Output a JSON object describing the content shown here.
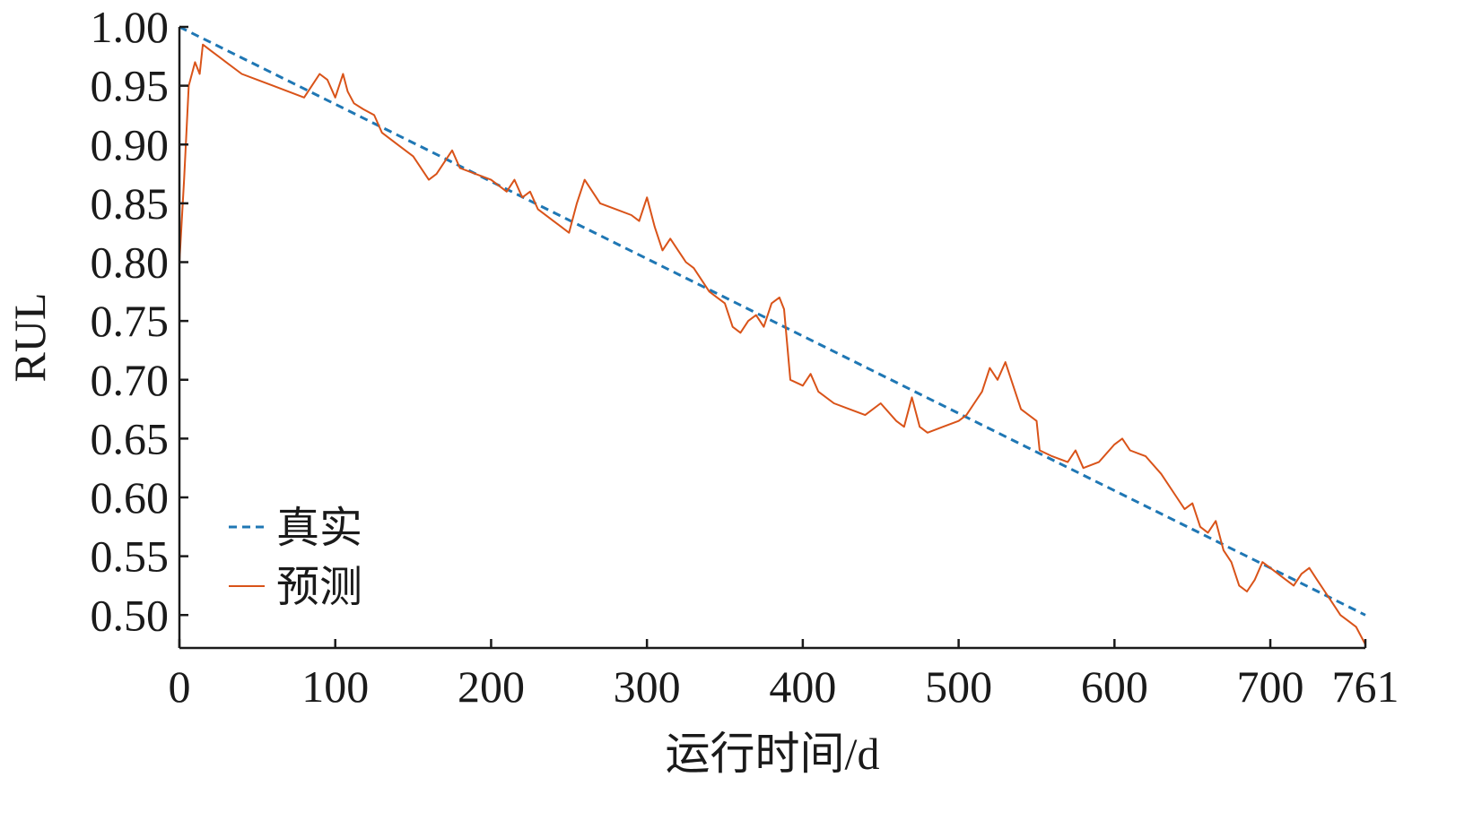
{
  "chart_data": {
    "type": "line",
    "xlabel": "运行时间/d",
    "ylabel": "RUL",
    "xlim": [
      0,
      761
    ],
    "ylim": [
      0.472,
      1.0
    ],
    "xticks": [
      0,
      100,
      200,
      300,
      400,
      500,
      600,
      700,
      761
    ],
    "xtick_labels": [
      "0",
      "100",
      "200",
      "300",
      "400",
      "500",
      "600",
      "700",
      "761"
    ],
    "yticks": [
      0.5,
      0.55,
      0.6,
      0.65,
      0.7,
      0.75,
      0.8,
      0.85,
      0.9,
      0.95,
      1.0
    ],
    "ytick_labels": [
      "0.50",
      "0.55",
      "0.60",
      "0.65",
      "0.70",
      "0.75",
      "0.80",
      "0.85",
      "0.90",
      "0.95",
      "1.00"
    ],
    "grid": false,
    "legend": {
      "position": "lower-left"
    },
    "series": [
      {
        "name": "真实",
        "style": "dashed",
        "color": "#1f77b4",
        "x": [
          0,
          761
        ],
        "y": [
          1.0,
          0.5
        ]
      },
      {
        "name": "预测",
        "style": "solid",
        "color": "#d95319",
        "x": [
          0,
          3,
          6,
          10,
          13,
          15,
          20,
          25,
          30,
          40,
          50,
          60,
          70,
          80,
          85,
          90,
          95,
          100,
          105,
          108,
          112,
          118,
          125,
          130,
          140,
          150,
          160,
          165,
          170,
          175,
          180,
          190,
          200,
          205,
          210,
          215,
          220,
          225,
          230,
          240,
          245,
          250,
          255,
          260,
          265,
          270,
          280,
          290,
          295,
          300,
          305,
          310,
          315,
          320,
          325,
          330,
          340,
          345,
          350,
          355,
          360,
          365,
          370,
          375,
          380,
          385,
          388,
          392,
          400,
          405,
          410,
          420,
          430,
          440,
          450,
          460,
          465,
          470,
          475,
          480,
          490,
          500,
          505,
          510,
          515,
          520,
          525,
          530,
          535,
          540,
          550,
          552,
          560,
          570,
          575,
          580,
          590,
          600,
          605,
          610,
          620,
          630,
          640,
          645,
          650,
          655,
          660,
          665,
          670,
          675,
          680,
          685,
          690,
          695,
          700,
          710,
          715,
          720,
          725,
          730,
          735,
          740,
          745,
          750,
          755,
          761
        ],
        "y": [
          0.8,
          0.87,
          0.95,
          0.97,
          0.96,
          0.985,
          0.98,
          0.975,
          0.97,
          0.96,
          0.955,
          0.95,
          0.945,
          0.94,
          0.95,
          0.96,
          0.955,
          0.94,
          0.96,
          0.945,
          0.935,
          0.93,
          0.925,
          0.91,
          0.9,
          0.89,
          0.87,
          0.875,
          0.885,
          0.895,
          0.88,
          0.875,
          0.87,
          0.865,
          0.86,
          0.87,
          0.855,
          0.86,
          0.845,
          0.835,
          0.83,
          0.825,
          0.85,
          0.87,
          0.86,
          0.85,
          0.845,
          0.84,
          0.835,
          0.855,
          0.83,
          0.81,
          0.82,
          0.81,
          0.8,
          0.795,
          0.775,
          0.77,
          0.765,
          0.745,
          0.74,
          0.75,
          0.755,
          0.745,
          0.765,
          0.77,
          0.76,
          0.7,
          0.695,
          0.705,
          0.69,
          0.68,
          0.675,
          0.67,
          0.68,
          0.665,
          0.66,
          0.685,
          0.66,
          0.655,
          0.66,
          0.665,
          0.67,
          0.68,
          0.69,
          0.71,
          0.7,
          0.715,
          0.695,
          0.675,
          0.665,
          0.64,
          0.635,
          0.63,
          0.64,
          0.625,
          0.63,
          0.645,
          0.65,
          0.64,
          0.635,
          0.62,
          0.6,
          0.59,
          0.595,
          0.575,
          0.57,
          0.58,
          0.555,
          0.545,
          0.525,
          0.52,
          0.53,
          0.545,
          0.54,
          0.53,
          0.525,
          0.535,
          0.54,
          0.53,
          0.52,
          0.51,
          0.5,
          0.495,
          0.49,
          0.475
        ]
      }
    ]
  }
}
